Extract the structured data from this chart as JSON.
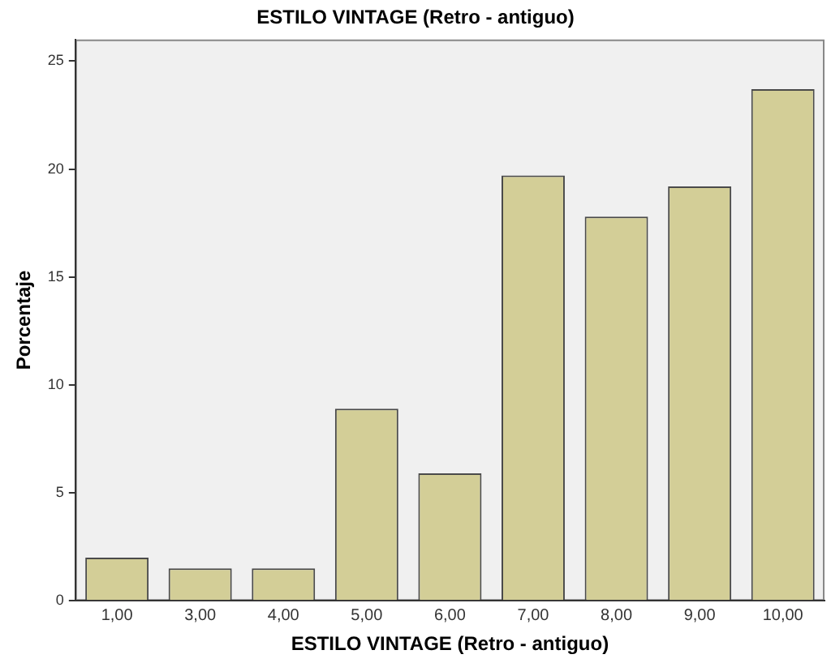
{
  "chart_data": {
    "type": "bar",
    "title": "ESTILO VINTAGE (Retro - antiguo)",
    "xlabel": "ESTILO VINTAGE (Retro - antiguo)",
    "ylabel": "Porcentaje",
    "categories": [
      "1,00",
      "3,00",
      "4,00",
      "5,00",
      "6,00",
      "7,00",
      "8,00",
      "9,00",
      "10,00"
    ],
    "values": [
      2.0,
      1.5,
      1.5,
      8.9,
      5.9,
      19.7,
      17.8,
      19.2,
      23.7
    ],
    "color": "#d3ce97",
    "ylim": [
      0,
      26
    ],
    "yticks": [
      0,
      5,
      10,
      15,
      20,
      25
    ],
    "grid": false,
    "legend": false
  }
}
